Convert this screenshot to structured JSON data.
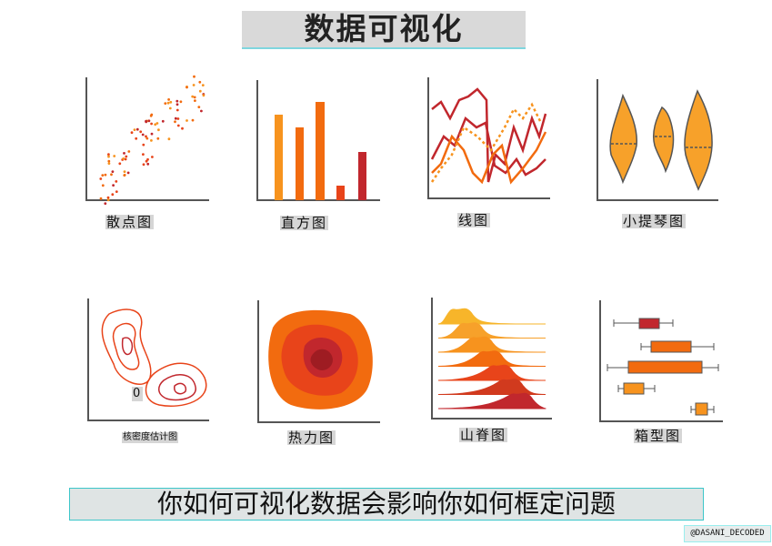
{
  "title": "数据可视化",
  "charts": [
    {
      "label": "散点图"
    },
    {
      "label": "直方图"
    },
    {
      "label": "线图"
    },
    {
      "label": "小提琴图"
    },
    {
      "label": "核密度估计图",
      "annotation": "0"
    },
    {
      "label": "热力图"
    },
    {
      "label": "山脊图"
    },
    {
      "label": "箱型图"
    }
  ],
  "banner": "你如何可视化数据会影响你如何框定问题",
  "watermark": "@DASANI_DECODED",
  "colors": {
    "orange": "#f7931e",
    "dark_orange": "#f26b0f",
    "red": "#c1272d",
    "axis": "#555555",
    "banner_border": "#3cc6c9"
  }
}
